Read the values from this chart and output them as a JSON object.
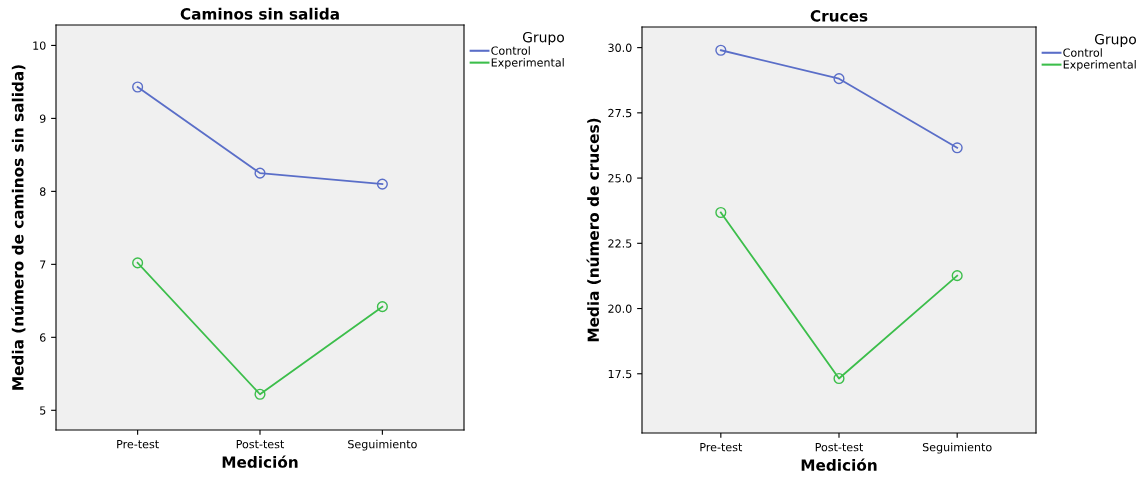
{
  "chart_data": [
    {
      "type": "line",
      "title": "Caminos sin salida",
      "xlabel": "Medición",
      "ylabel": "Media (número de caminos sin salida)",
      "legend_title": "Grupo",
      "legend": "top right",
      "marker": "circle",
      "line_style": "solid",
      "grid": false,
      "categories": [
        "Pre-test",
        "Post-test",
        "Seguimiento"
      ],
      "ylim": [
        4.73,
        10.28
      ],
      "yticks": [
        5,
        6,
        7,
        8,
        9,
        10
      ],
      "series": [
        {
          "name": "Control",
          "color": "#5a6ec8",
          "values": [
            9.43,
            8.25,
            8.1
          ]
        },
        {
          "name": "Experimental",
          "color": "#3cbe4b",
          "values": [
            7.02,
            5.22,
            6.42
          ]
        }
      ]
    },
    {
      "type": "line",
      "title": "Cruces",
      "xlabel": "Medición",
      "ylabel": "Media (número de cruces)",
      "legend_title": "Grupo",
      "legend": "top right",
      "marker": "circle",
      "line_style": "solid",
      "grid": false,
      "categories": [
        "Pre-test",
        "Post-test",
        "Seguimiento"
      ],
      "ylim": [
        15.23,
        30.79
      ],
      "yticks": [
        {
          "value": 17.5,
          "label": "17.5"
        },
        {
          "value": 20,
          "label": "20.0"
        },
        {
          "value": 22.5,
          "label": "22.5"
        },
        {
          "value": 25,
          "label": "25.0"
        },
        {
          "value": 27.5,
          "label": "27.5"
        },
        {
          "value": 30,
          "label": "30.0"
        }
      ],
      "series": [
        {
          "name": "Control",
          "color": "#5a6ec8",
          "values": [
            29.9,
            28.81,
            26.16
          ]
        },
        {
          "name": "Experimental",
          "color": "#3cbe4b",
          "values": [
            23.68,
            17.32,
            21.26
          ]
        }
      ]
    }
  ]
}
